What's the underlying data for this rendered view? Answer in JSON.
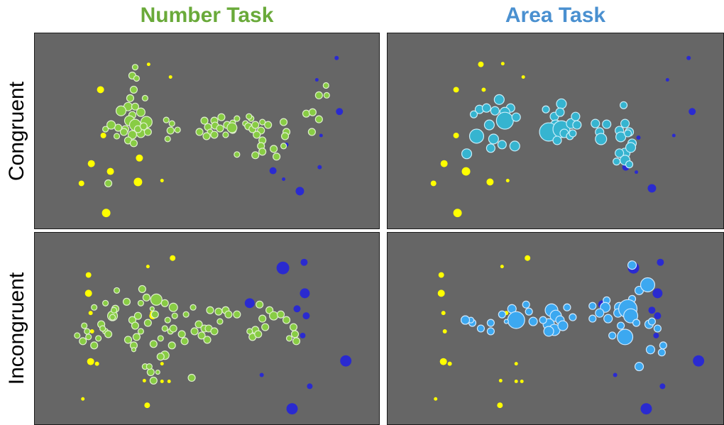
{
  "titles": {
    "number": "Number Task",
    "area": "Area Task"
  },
  "rows": {
    "congruent": "Congruent",
    "incongruent": "Incongruent"
  },
  "colors": {
    "number_title": "#6aaa3a",
    "area_title": "#4a90d0",
    "panel_bg": "#666666",
    "yellow_dots": "#ffff00",
    "blue_dots": "#2a2ad0",
    "green_dots": "#88cc44",
    "cyan_dots": "#36b4d0",
    "sky_dots": "#3ca8f0"
  }
}
